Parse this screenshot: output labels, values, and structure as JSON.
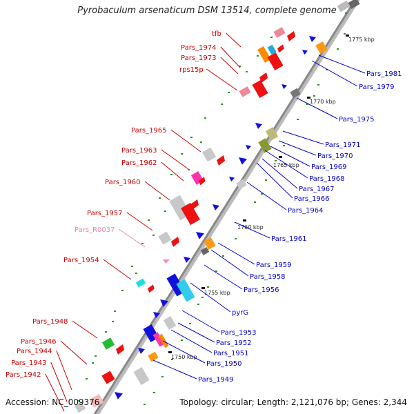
{
  "title": "Pyrobaculum arsenaticum DSM 13514, complete genome",
  "accession": "Accession: NC_009376",
  "topology": "Topology: circular; Length: 2,121,076 bp; Genes: 2,344",
  "colors": {
    "backbone": "#888888",
    "left_label": "#cc0000",
    "right_label": "#0000cc",
    "rna_label": "#ee88aa",
    "tick": "#229922"
  },
  "kbp_ticks": [
    "1775 kbp",
    "1770 kbp",
    "1765 kbp",
    "1760 kbp",
    "1755 kbp",
    "1750 kbp"
  ],
  "left_labels": [
    "tfb",
    "Pars_1974",
    "Pars_1973",
    "rps15p",
    "Pars_1965",
    "Pars_1963",
    "Pars_1962",
    "Pars_1960",
    "Pars_1957",
    "Pars_R0037",
    "Pars_1954",
    "Pars_1948",
    "Pars_1946",
    "Pars_1944",
    "Pars_1943",
    "Pars_1942"
  ],
  "right_labels": [
    "Pars_1981",
    "Pars_1979",
    "Pars_1975",
    "Pars_1971",
    "Pars_1970",
    "Pars_1969",
    "Pars_1968",
    "Pars_1967",
    "Pars_1966",
    "Pars_1964",
    "Pars_1961",
    "Pars_1959",
    "Pars_1958",
    "Pars_1956",
    "pyrG",
    "Pars_1953",
    "Pars_1952",
    "Pars_1951",
    "Pars_1950",
    "Pars_1949"
  ]
}
